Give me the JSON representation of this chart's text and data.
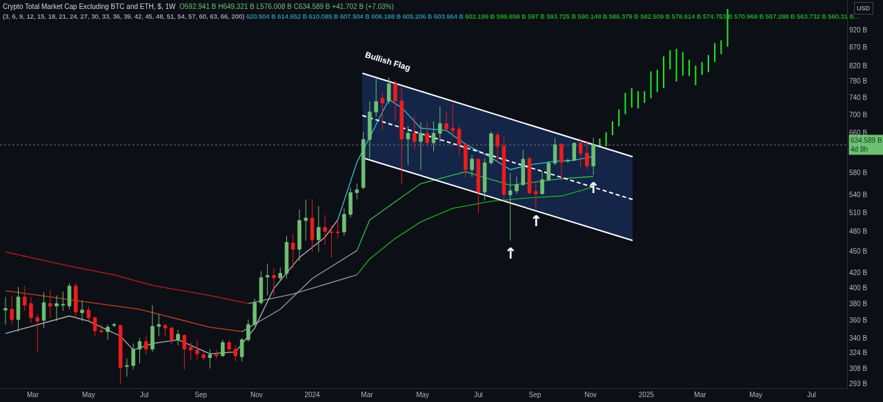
{
  "chart_data": {
    "type": "candlestick",
    "title": "Crypto Total Market Cap Excluding BTC and ETH, $, 1W",
    "subtitle": "(3, 6, 9, 12, 15, 18, 21, 24, 27, 30, 33, 36, 39, 42, 45, 48, 51, 54, 57, 60, 63, 66, 200)",
    "annotations": [
      "O592.941 B H649.321 B L576.008 B C634.589 B +41.702 B (+7.03%)",
      "620.504 B 614.652 B 610.085 B 607.504 B 606.188 B 605.206 B 603.964 B",
      "602.199 B 599.859 B 597 B 593.725 B 590.148 B 586.379 B 582.509 B 578.614 B 574.753 B 570.968 B 567.288 B 563.732 B 560.31 B...",
      "USD",
      {
        "text": "Bullish Flag",
        "x": "2024-02-25",
        "y": 800
      },
      {
        "text": "↑",
        "x": "2024-08-05",
        "y": 466
      },
      {
        "text": "↑",
        "x": "2024-09-02",
        "y": 517
      },
      {
        "text": "↑",
        "x": "2024-11-04",
        "y": 576.008
      }
    ],
    "x": [
      "2023-01-30",
      "2023-02-06",
      "2023-02-13",
      "2023-02-20",
      "2023-02-27",
      "2023-03-06",
      "2023-03-13",
      "2023-03-20",
      "2023-03-27",
      "2023-04-03",
      "2023-04-10",
      "2023-04-17",
      "2023-04-24",
      "2023-05-01",
      "2023-05-08",
      "2023-05-15",
      "2023-05-22",
      "2023-05-29",
      "2023-06-05",
      "2023-06-12",
      "2023-06-19",
      "2023-06-26",
      "2023-07-03",
      "2023-07-10",
      "2023-07-17",
      "2023-07-24",
      "2023-07-31",
      "2023-08-07",
      "2023-08-14",
      "2023-08-21",
      "2023-08-28",
      "2023-09-04",
      "2023-09-11",
      "2023-09-18",
      "2023-09-25",
      "2023-10-02",
      "2023-10-09",
      "2023-10-16",
      "2023-10-23",
      "2023-10-30",
      "2023-11-06",
      "2023-11-13",
      "2023-11-20",
      "2023-11-27",
      "2023-12-04",
      "2023-12-11",
      "2023-12-18",
      "2023-12-25",
      "2024-01-01",
      "2024-01-08",
      "2024-01-15",
      "2024-01-22",
      "2024-01-29",
      "2024-02-05",
      "2024-02-12",
      "2024-02-19",
      "2024-02-26",
      "2024-03-04",
      "2024-03-11",
      "2024-03-18",
      "2024-03-25",
      "2024-04-01",
      "2024-04-08",
      "2024-04-15",
      "2024-04-22",
      "2024-04-29",
      "2024-05-06",
      "2024-05-13",
      "2024-05-20",
      "2024-05-27",
      "2024-06-03",
      "2024-06-10",
      "2024-06-17",
      "2024-06-24",
      "2024-07-01",
      "2024-07-08",
      "2024-07-15",
      "2024-07-22",
      "2024-07-29",
      "2024-08-05",
      "2024-08-12",
      "2024-08-19",
      "2024-08-26",
      "2024-09-02",
      "2024-09-09",
      "2024-09-16",
      "2024-09-23",
      "2024-09-30",
      "2024-10-07",
      "2024-10-14",
      "2024-10-21",
      "2024-10-28",
      "2024-11-04"
    ],
    "ohlc": [
      [
        372,
        388,
        355,
        374
      ],
      [
        373,
        390,
        355,
        361
      ],
      [
        361,
        401,
        347,
        388
      ],
      [
        388,
        402,
        371,
        378
      ],
      [
        380,
        388,
        357,
        363
      ],
      [
        363,
        367,
        325,
        359
      ],
      [
        360,
        394,
        351,
        381
      ],
      [
        380,
        397,
        363,
        377
      ],
      [
        377,
        390,
        359,
        380
      ],
      [
        378,
        395,
        371,
        379
      ],
      [
        377,
        406,
        373,
        402
      ],
      [
        402,
        406,
        363,
        370
      ],
      [
        369,
        384,
        359,
        372
      ],
      [
        372,
        377,
        359,
        363
      ],
      [
        363,
        364,
        342,
        348
      ],
      [
        348,
        355,
        345,
        347
      ],
      [
        347,
        355,
        338,
        352
      ],
      [
        354,
        357,
        352,
        355
      ],
      [
        354,
        355,
        293,
        309
      ],
      [
        310,
        318,
        300,
        311
      ],
      [
        311,
        334,
        307,
        328
      ],
      [
        328,
        340,
        313,
        336
      ],
      [
        336,
        343,
        322,
        328
      ],
      [
        328,
        378,
        325,
        353
      ],
      [
        353,
        367,
        342,
        355
      ],
      [
        354,
        356,
        342,
        351
      ],
      [
        351,
        353,
        333,
        338
      ],
      [
        338,
        349,
        332,
        344
      ],
      [
        343,
        344,
        307,
        328
      ],
      [
        330,
        335,
        317,
        327
      ],
      [
        327,
        338,
        317,
        323
      ],
      [
        322,
        325,
        316,
        319
      ],
      [
        319,
        328,
        308,
        322
      ],
      [
        322,
        327,
        318,
        321
      ],
      [
        321,
        338,
        320,
        335
      ],
      [
        335,
        338,
        325,
        328
      ],
      [
        328,
        332,
        315,
        321
      ],
      [
        320,
        340,
        315,
        338
      ],
      [
        338,
        361,
        336,
        355
      ],
      [
        355,
        386,
        354,
        381
      ],
      [
        381,
        422,
        379,
        413
      ],
      [
        414,
        432,
        390,
        416
      ],
      [
        416,
        426,
        390,
        413
      ],
      [
        413,
        427,
        408,
        419
      ],
      [
        419,
        473,
        412,
        463
      ],
      [
        462,
        476,
        426,
        453
      ],
      [
        453,
        515,
        436,
        497
      ],
      [
        497,
        532,
        466,
        501
      ],
      [
        501,
        532,
        449,
        467
      ],
      [
        467,
        521,
        449,
        486
      ],
      [
        486,
        506,
        459,
        480
      ],
      [
        479,
        489,
        441,
        478
      ],
      [
        479,
        496,
        469,
        478
      ],
      [
        479,
        517,
        473,
        507
      ],
      [
        507,
        553,
        502,
        544
      ],
      [
        544,
        560,
        532,
        549
      ],
      [
        553,
        662,
        550,
        646
      ],
      [
        646,
        730,
        608,
        706
      ],
      [
        706,
        786,
        695,
        730
      ],
      [
        738,
        751,
        665,
        727
      ],
      [
        732,
        789,
        724,
        773
      ],
      [
        773,
        782,
        685,
        732
      ],
      [
        732,
        763,
        559,
        647
      ],
      [
        647,
        675,
        595,
        659
      ],
      [
        659,
        698,
        626,
        642
      ],
      [
        642,
        683,
        586,
        659
      ],
      [
        659,
        683,
        632,
        639
      ],
      [
        639,
        685,
        622,
        659
      ],
      [
        659,
        719,
        640,
        680
      ],
      [
        680,
        706,
        665,
        668
      ],
      [
        670,
        722,
        650,
        665
      ],
      [
        668,
        676,
        613,
        635
      ],
      [
        635,
        640,
        572,
        586
      ],
      [
        586,
        615,
        572,
        606
      ],
      [
        606,
        608,
        509,
        545
      ],
      [
        545,
        608,
        530,
        599
      ],
      [
        599,
        662,
        595,
        658
      ],
      [
        655,
        661,
        599,
        632
      ],
      [
        632,
        650,
        529,
        541
      ],
      [
        540,
        579,
        466,
        547
      ],
      [
        547,
        573,
        542,
        558
      ],
      [
        558,
        625,
        557,
        606
      ],
      [
        607,
        611,
        542,
        543
      ],
      [
        546,
        565,
        517,
        542
      ],
      [
        542,
        582,
        541,
        567
      ],
      [
        567,
        602,
        565,
        598
      ],
      [
        598,
        649,
        595,
        635
      ],
      [
        636,
        639,
        565,
        600
      ],
      [
        602,
        607,
        599,
        604
      ],
      [
        604,
        640,
        602,
        638
      ],
      [
        638,
        648,
        591,
        618
      ],
      [
        618,
        643,
        586,
        593
      ],
      [
        592.941,
        649.321,
        576.008,
        634.589
      ]
    ],
    "colors": [
      "#6fbf73",
      "#ee1c1c",
      "#6fbf73",
      "#ee1c1c",
      "#ee1c1c",
      "#ee1c1c",
      "#6fbf73",
      "#ee1c1c",
      "#6fbf73",
      "#6fbf73",
      "#6fbf73",
      "#ee1c1c",
      "#6fbf73",
      "#ee1c1c",
      "#ee1c1c",
      "#ee1c1c",
      "#6fbf73",
      "#6fbf73",
      "#ee1c1c",
      "#6fbf73",
      "#6fbf73",
      "#6fbf73",
      "#ee1c1c",
      "#6fbf73",
      "#6fbf73",
      "#ee1c1c",
      "#ee1c1c",
      "#6fbf73",
      "#ee1c1c",
      "#ee1c1c",
      "#ee1c1c",
      "#ee1c1c",
      "#6fbf73",
      "#ee1c1c",
      "#6fbf73",
      "#ee1c1c",
      "#ee1c1c",
      "#6fbf73",
      "#6fbf73",
      "#6fbf73",
      "#6fbf73",
      "#6fbf73",
      "#ee1c1c",
      "#6fbf73",
      "#6fbf73",
      "#ee1c1c",
      "#6fbf73",
      "#6fbf73",
      "#ee1c1c",
      "#6fbf73",
      "#ee1c1c",
      "#ee1c1c",
      "#ee1c1c",
      "#6fbf73",
      "#6fbf73",
      "#6fbf73",
      "#6fbf73",
      "#6fbf73",
      "#6fbf73",
      "#ee1c1c",
      "#6fbf73",
      "#ee1c1c",
      "#ee1c1c",
      "#6fbf73",
      "#ee1c1c",
      "#6fbf73",
      "#ee1c1c",
      "#6fbf73",
      "#6fbf73",
      "#ee1c1c",
      "#ee1c1c",
      "#ee1c1c",
      "#ee1c1c",
      "#6fbf73",
      "#ee1c1c",
      "#6fbf73",
      "#6fbf73",
      "#ee1c1c",
      "#ee1c1c",
      "#6fbf73",
      "#6fbf73",
      "#6fbf73",
      "#ee1c1c",
      "#ee1c1c",
      "#6fbf73",
      "#6fbf73",
      "#6fbf73",
      "#ee1c1c",
      "#6fbf73",
      "#6fbf73",
      "#ee1c1c",
      "#ee1c1c",
      "#6fbf73"
    ],
    "series": [
      {
        "type": "line",
        "color": "#c41e1e",
        "x": [
          "2023-01-30",
          "2023-04-10",
          "2023-05-29",
          "2023-07-10",
          "2023-09-11",
          "2023-10-23"
        ],
        "values": [
          449,
          429,
          417,
          403,
          390,
          380
        ]
      },
      {
        "type": "line",
        "color": "#9a9a9a",
        "x": [
          "2023-10-23",
          "2023-12-11",
          "2024-02-19"
        ],
        "values": [
          380,
          392,
          417
        ]
      },
      {
        "type": "line",
        "color": "#1fae1f",
        "x": [
          "2024-02-19",
          "2024-03-04",
          "2024-04-01",
          "2024-04-29",
          "2024-06-03",
          "2024-07-15",
          "2024-08-26",
          "2024-09-30",
          "2024-11-04"
        ],
        "values": [
          417,
          439,
          469,
          495,
          517,
          529,
          535,
          538,
          554
        ]
      },
      {
        "type": "line",
        "color": "#c8431e",
        "x": [
          "2023-01-30",
          "2023-06-26",
          "2023-09-11",
          "2023-10-16"
        ],
        "values": [
          396,
          373,
          352,
          347
        ]
      },
      {
        "type": "line",
        "color": "#a0a0a0",
        "x": [
          "2023-10-16",
          "2023-11-27",
          "2024-01-01",
          "2024-02-19"
        ],
        "values": [
          347,
          373,
          412,
          451
        ]
      },
      {
        "type": "line",
        "color": "#2fc04a",
        "x": [
          "2024-02-19",
          "2024-03-04",
          "2024-04-29",
          "2024-06-17",
          "2024-08-05",
          "2024-09-30",
          "2024-11-04"
        ],
        "values": [
          451,
          498,
          560,
          582,
          557,
          569,
          573
        ]
      },
      {
        "type": "line",
        "color": "#b8b8b8",
        "x": [
          "2023-01-30",
          "2023-04-10",
          "2023-05-01",
          "2023-06-05",
          "2023-06-19",
          "2023-07-10",
          "2023-08-07",
          "2023-09-11",
          "2023-10-09",
          "2023-10-30",
          "2023-11-20",
          "2023-12-18",
          "2024-01-15",
          "2024-01-29"
        ],
        "values": [
          345,
          365,
          359,
          342,
          327,
          334,
          338,
          323,
          325,
          351,
          399,
          441,
          471,
          498
        ]
      },
      {
        "type": "line",
        "color": "#2ec4d6",
        "x": [
          "2024-01-29",
          "2024-02-19",
          "2024-03-25",
          "2024-04-08",
          "2024-04-29",
          "2024-05-27",
          "2024-06-17",
          "2024-07-15",
          "2024-08-05",
          "2024-08-26",
          "2024-09-23",
          "2024-10-14",
          "2024-11-04"
        ],
        "values": [
          498,
          600,
          735,
          716,
          670,
          665,
          636,
          609,
          586,
          595,
          602,
          604,
          611
        ]
      },
      {
        "type": "line",
        "color": "#ffffff",
        "x": [
          "2024-02-25",
          "2024-12-17"
        ],
        "values": [
          800,
          611
        ]
      },
      {
        "type": "line",
        "color": "#ffffff",
        "x": [
          "2024-02-25",
          "2024-12-17"
        ],
        "values": [
          609,
          466
        ]
      },
      {
        "type": "line",
        "color": "#ffffff",
        "line_style": "dashed",
        "x": [
          "2024-02-25",
          "2024-12-17"
        ],
        "values": [
          698,
          532
        ],
        "lower": [
          609,
          466
        ],
        "upper": [
          800,
          611
        ]
      },
      {
        "type": "bar",
        "color": "#22e022",
        "x": [
          "2024-11-11",
          "2024-11-18",
          "2024-11-25",
          "2024-12-02",
          "2024-12-09",
          "2024-12-16",
          "2024-12-23",
          "2024-12-30",
          "2025-01-06",
          "2025-01-13",
          "2025-01-20",
          "2025-01-27",
          "2025-02-03",
          "2025-02-10",
          "2025-02-17",
          "2025-02-24",
          "2025-03-03",
          "2025-03-10",
          "2025-03-17",
          "2025-03-24",
          "2025-03-31"
        ],
        "base": [
          632,
          632,
          655,
          674,
          701,
          716,
          714,
          727,
          738,
          753,
          763,
          810,
          779,
          794,
          793,
          770,
          796,
          803,
          830,
          851,
          872
        ],
        "values": [
          16,
          29,
          30,
          38,
          50,
          47,
          41,
          28,
          67,
          56,
          82,
          52,
          87,
          63,
          43,
          50,
          34,
          46,
          52,
          39,
          113
        ]
      }
    ],
    "ref_lines": [
      {
        "axis": "y",
        "value": 634.589,
        "label": "634.589 B\n4d 8h",
        "color": "#787b86",
        "line_style": "dotted"
      }
    ],
    "log": "y",
    "ylim": [
      289,
      1014
    ],
    "yticks": [
      {
        "value": 293,
        "label": "293 B"
      },
      {
        "value": 308,
        "label": "308 B"
      },
      {
        "value": 324,
        "label": "324 B"
      },
      {
        "value": 340,
        "label": "340 B"
      },
      {
        "value": 360,
        "label": "360 B"
      },
      {
        "value": 380,
        "label": "380 B"
      },
      {
        "value": 400,
        "label": "400 B"
      },
      {
        "value": 420,
        "label": "420 B"
      },
      {
        "value": 450,
        "label": "450 B"
      },
      {
        "value": 480,
        "label": "480 B"
      },
      {
        "value": 510,
        "label": "510 B"
      },
      {
        "value": 540,
        "label": "540 B"
      },
      {
        "value": 580,
        "label": "580 B"
      },
      {
        "value": 660,
        "label": "660 B"
      },
      {
        "value": 700,
        "label": "700 B"
      },
      {
        "value": 740,
        "label": "740 B"
      },
      {
        "value": 780,
        "label": "780 B"
      },
      {
        "value": 820,
        "label": "820 B"
      },
      {
        "value": 870,
        "label": "870 B"
      },
      {
        "value": 920,
        "label": "920 B"
      }
    ],
    "xlim": [
      "2023-01-24",
      "2025-08-09"
    ],
    "xticks": [
      {
        "value": "2023-03-01",
        "label": "Mar"
      },
      {
        "value": "2023-05-01",
        "label": "May"
      },
      {
        "value": "2023-07-01",
        "label": "Jul"
      },
      {
        "value": "2023-09-01",
        "label": "Sep"
      },
      {
        "value": "2023-11-01",
        "label": "Nov"
      },
      {
        "value": "2024-01-01",
        "label": "2024"
      },
      {
        "value": "2024-03-01",
        "label": "Mar"
      },
      {
        "value": "2024-05-01",
        "label": "May"
      },
      {
        "value": "2024-07-01",
        "label": "Jul"
      },
      {
        "value": "2024-09-01",
        "label": "Sep"
      },
      {
        "value": "2024-11-01",
        "label": "Nov"
      },
      {
        "value": "2025-01-01",
        "label": "2025"
      },
      {
        "value": "2025-03-01",
        "label": "Mar"
      },
      {
        "value": "2025-05-01",
        "label": "May"
      },
      {
        "value": "2025-07-01",
        "label": "Jul"
      }
    ],
    "grid": false,
    "legend": false,
    "marker": "none"
  }
}
